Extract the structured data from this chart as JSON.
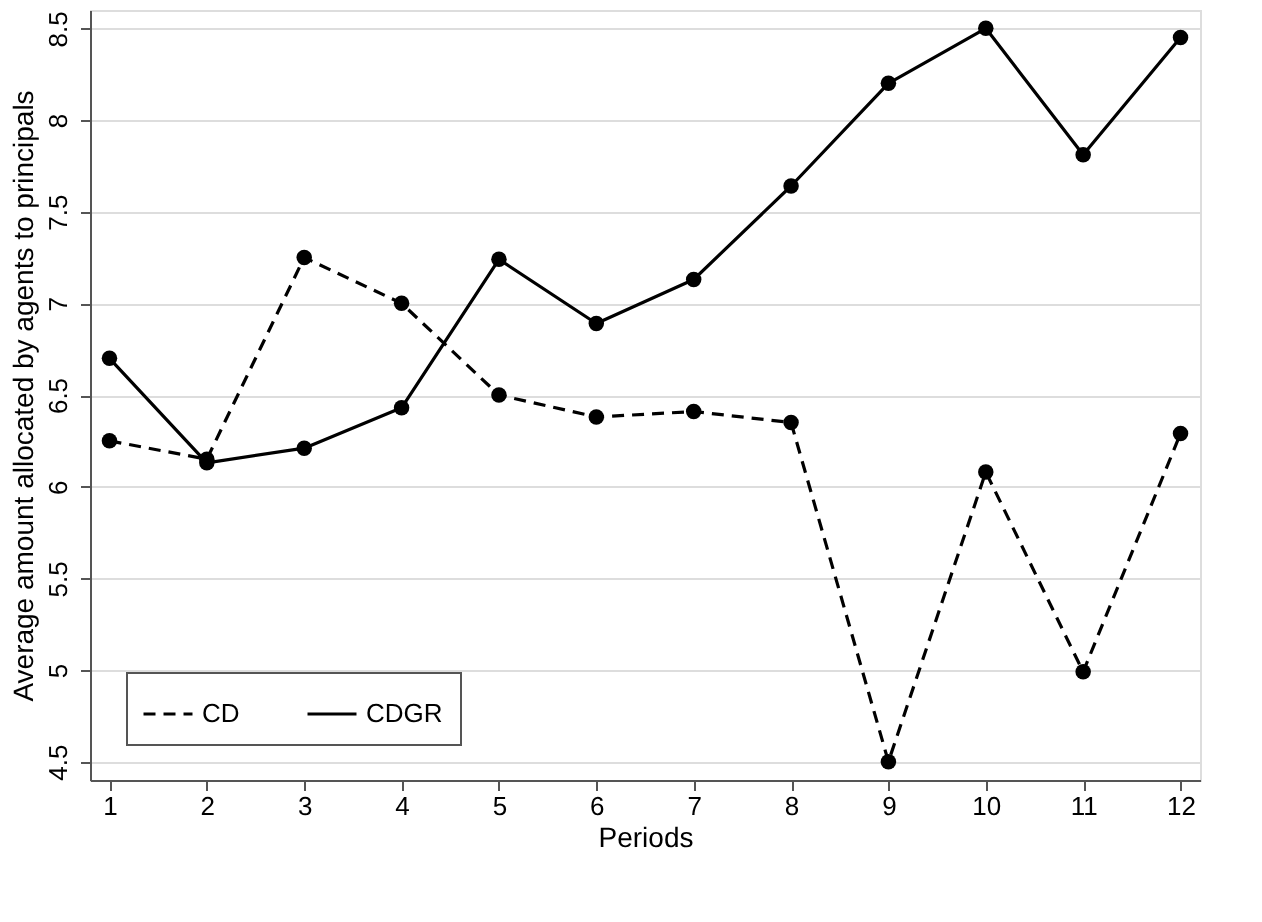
{
  "chart_data": {
    "type": "line",
    "xlabel": "Periods",
    "ylabel": "Average amount allocated by agents to principals",
    "x": [
      1,
      2,
      3,
      4,
      5,
      6,
      7,
      8,
      9,
      10,
      11,
      12
    ],
    "series": [
      {
        "name": "CD",
        "color": "#000000",
        "line_style": "dashed",
        "values": [
          6.25,
          6.15,
          7.25,
          7.0,
          6.5,
          6.38,
          6.41,
          6.35,
          4.5,
          6.08,
          4.99,
          6.29
        ]
      },
      {
        "name": "CDGR",
        "color": "#000000",
        "line_style": "solid",
        "values": [
          6.7,
          6.13,
          6.21,
          6.43,
          7.24,
          6.89,
          7.13,
          7.64,
          8.2,
          8.5,
          7.81,
          8.45
        ]
      }
    ],
    "xlim": [
      0.8,
      12.2
    ],
    "xticks": [
      1,
      2,
      3,
      4,
      5,
      6,
      7,
      8,
      9,
      10,
      11,
      12
    ],
    "ylim": [
      4.4,
      8.6
    ],
    "yticks": [
      4.5,
      5,
      5.5,
      6,
      6.5,
      7,
      7.5,
      8,
      8.5
    ],
    "grid": "y",
    "legend": "bottom left",
    "marker": "circle"
  }
}
